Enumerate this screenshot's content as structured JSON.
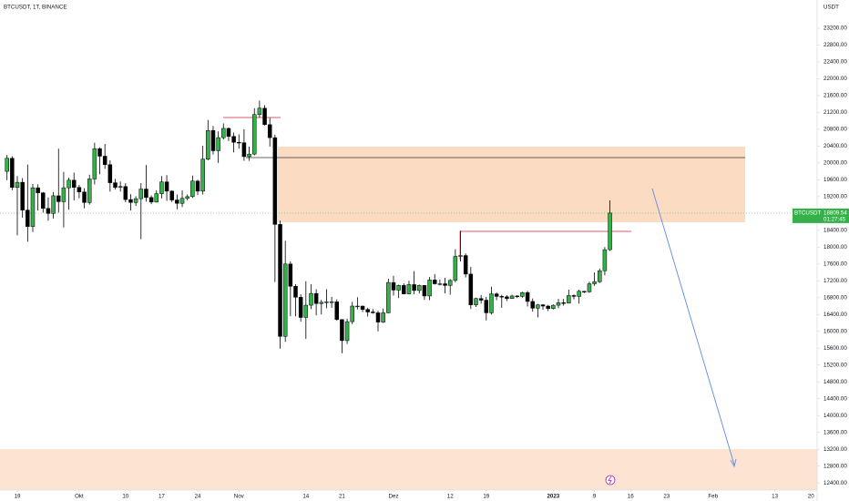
{
  "chart_data": {
    "type": "candlestick",
    "title": "BTCUSDT, 1T, BINANCE",
    "y_axis_label": "USDT",
    "symbol_label": "BTCUSDT",
    "countdown": "01:27:45",
    "up_color": "#36b04a",
    "down_color": "#000000",
    "grid": false,
    "xlim": [
      -3.36,
      155.2
    ],
    "ylim": [
      12230,
      23870
    ],
    "xticks": [
      {
        "value": 0,
        "label": "19"
      },
      {
        "value": 12,
        "label": "Okt"
      },
      {
        "value": 21,
        "label": "10"
      },
      {
        "value": 28,
        "label": "17"
      },
      {
        "value": 35,
        "label": "24"
      },
      {
        "value": 43,
        "label": "Nov"
      },
      {
        "value": 56,
        "label": "14"
      },
      {
        "value": 63,
        "label": "21"
      },
      {
        "value": 73,
        "label": "Dez"
      },
      {
        "value": 84,
        "label": "12"
      },
      {
        "value": 91,
        "label": "19"
      },
      {
        "value": 104,
        "label": "2023"
      },
      {
        "value": 112,
        "label": "9"
      },
      {
        "value": 119,
        "label": "16"
      },
      {
        "value": 126,
        "label": "23"
      },
      {
        "value": 135,
        "label": "Feb"
      },
      {
        "value": 147,
        "label": "13"
      },
      {
        "value": 154,
        "label": "20"
      }
    ],
    "yticks": [
      {
        "value": 12400,
        "label": "12400.00"
      },
      {
        "value": 12800,
        "label": "12800.00"
      },
      {
        "value": 13200,
        "label": "13200.00"
      },
      {
        "value": 13600,
        "label": "13600.00"
      },
      {
        "value": 14000,
        "label": "14000.00"
      },
      {
        "value": 14400,
        "label": "14400.00"
      },
      {
        "value": 14800,
        "label": "14800.00"
      },
      {
        "value": 15200,
        "label": "15200.00"
      },
      {
        "value": 15600,
        "label": "15600.00"
      },
      {
        "value": 16000,
        "label": "16000.00"
      },
      {
        "value": 16400,
        "label": "16400.00"
      },
      {
        "value": 16800,
        "label": "16800.00"
      },
      {
        "value": 17200,
        "label": "17200.00"
      },
      {
        "value": 17600,
        "label": "17600.00"
      },
      {
        "value": 18000,
        "label": "18000.00"
      },
      {
        "value": 18400,
        "label": "18400.00"
      },
      {
        "value": 18800,
        "label": "18800.00"
      },
      {
        "value": 19200,
        "label": "19200.00"
      },
      {
        "value": 19600,
        "label": "19600.00"
      },
      {
        "value": 20000,
        "label": "20000.00"
      },
      {
        "value": 20400,
        "label": "20400.00"
      },
      {
        "value": 20800,
        "label": "20800.00"
      },
      {
        "value": 21200,
        "label": "21200.00"
      },
      {
        "value": 21600,
        "label": "21600.00"
      },
      {
        "value": 22000,
        "label": "22000.00"
      },
      {
        "value": 22400,
        "label": "22400.00"
      },
      {
        "value": 22800,
        "label": "22800.00"
      },
      {
        "value": 23200,
        "label": "23200.00"
      }
    ],
    "x": [
      -2,
      -1,
      0,
      1,
      2,
      3,
      4,
      5,
      6,
      7,
      8,
      9,
      10,
      11,
      12,
      13,
      14,
      15,
      16,
      17,
      18,
      19,
      20,
      21,
      22,
      23,
      24,
      25,
      26,
      27,
      28,
      29,
      30,
      31,
      32,
      33,
      34,
      35,
      36,
      37,
      38,
      39,
      40,
      41,
      42,
      43,
      44,
      45,
      46,
      47,
      48,
      49,
      50,
      51,
      52,
      53,
      54,
      55,
      56,
      57,
      58,
      59,
      60,
      61,
      62,
      63,
      64,
      65,
      66,
      67,
      68,
      69,
      70,
      71,
      72,
      73,
      74,
      75,
      76,
      77,
      78,
      79,
      80,
      81,
      82,
      83,
      84,
      85,
      86,
      87,
      88,
      89,
      90,
      91,
      92,
      93,
      94,
      95,
      96,
      97,
      98,
      99,
      100,
      101,
      102,
      103,
      104,
      105,
      106,
      107,
      108,
      109,
      110,
      111,
      112,
      113,
      114,
      115
    ],
    "open": [
      19800,
      20110,
      19420,
      19540,
      18880,
      18490,
      19410,
      19290,
      18920,
      18800,
      19220,
      19080,
      19410,
      19590,
      19420,
      19310,
      19060,
      19620,
      20340,
      20160,
      19960,
      19530,
      19420,
      19440,
      19130,
      19060,
      19150,
      19380,
      19180,
      19070,
      19270,
      19550,
      19330,
      19120,
      19040,
      19160,
      19200,
      19570,
      19330,
      20090,
      20770,
      20290,
      20600,
      20820,
      20630,
      20490,
      20480,
      20150,
      20210,
      21150,
      21300,
      20910,
      20600,
      18540,
      15880,
      17600,
      17070,
      16810,
      16330,
      16620,
      16900,
      16660,
      16690,
      16700,
      16700,
      16280,
      15780,
      16230,
      16600,
      16600,
      16520,
      16460,
      16440,
      16220,
      16440,
      17160,
      16980,
      17090,
      16890,
      17110,
      16970,
      17090,
      16840,
      17220,
      17130,
      17130,
      17090,
      17210,
      17780,
      17800,
      17360,
      16630,
      16780,
      16740,
      16440,
      16890,
      16830,
      16820,
      16780,
      16840,
      16830,
      16920,
      16710,
      16550,
      16630,
      16600,
      16540,
      16620,
      16680,
      16670,
      16850,
      16830,
      16950,
      16940,
      17130,
      17180,
      17440,
      17940
    ],
    "high": [
      20190,
      20160,
      19690,
      19640,
      19960,
      19500,
      19490,
      19310,
      19180,
      19310,
      20340,
      19790,
      19650,
      19770,
      19480,
      19400,
      19720,
      20480,
      20370,
      20450,
      20060,
      19620,
      19560,
      19520,
      19260,
      19210,
      19520,
      19950,
      19230,
      19350,
      19690,
      19710,
      19350,
      19250,
      19350,
      19250,
      19700,
      19600,
      20410,
      21020,
      20880,
      20750,
      20940,
      20840,
      20720,
      20680,
      20800,
      20390,
      21300,
      21480,
      21370,
      21070,
      20670,
      18630,
      18150,
      17660,
      17120,
      16880,
      17190,
      17120,
      17000,
      16750,
      17000,
      16820,
      16760,
      16290,
      16300,
      16700,
      16810,
      16610,
      16560,
      16530,
      16490,
      16540,
      17250,
      17320,
      17110,
      17140,
      17200,
      17430,
      17110,
      17100,
      17290,
      17360,
      17230,
      17270,
      17240,
      17950,
      18390,
      17850,
      17530,
      16800,
      16860,
      16820,
      17060,
      16920,
      16870,
      16860,
      16870,
      16860,
      16940,
      16960,
      16780,
      16650,
      16650,
      16630,
      16640,
      16770,
      16770,
      16990,
      16880,
      16990,
      16960,
      17180,
      17400,
      17490,
      18000,
      19110
    ],
    "low": [
      19590,
      19350,
      18280,
      18700,
      18130,
      18360,
      18870,
      18820,
      18630,
      18680,
      18820,
      18470,
      18890,
      19110,
      19160,
      18920,
      19010,
      19490,
      19730,
      19860,
      19320,
      19370,
      19320,
      19070,
      18870,
      18980,
      18190,
      19080,
      19020,
      19060,
      19160,
      19100,
      19070,
      18900,
      18950,
      19110,
      19170,
      19240,
      19250,
      20060,
      20200,
      20000,
      20560,
      20520,
      20250,
      20340,
      20050,
      20050,
      20180,
      21080,
      20890,
      20390,
      17170,
      15590,
      15750,
      16360,
      16360,
      16230,
      15820,
      16530,
      16380,
      16400,
      16550,
      16560,
      16250,
      15480,
      15700,
      16170,
      16520,
      16460,
      16350,
      16420,
      16000,
      16200,
      16430,
      16850,
      16790,
      16880,
      16880,
      16880,
      16900,
      16750,
      16740,
      17110,
      17090,
      16900,
      16870,
      17160,
      17660,
      17280,
      16530,
      16580,
      16660,
      16260,
      16400,
      16740,
      16560,
      16720,
      16770,
      16790,
      16800,
      16590,
      16470,
      16330,
      16510,
      16480,
      16520,
      16550,
      16610,
      16660,
      16760,
      16660,
      16910,
      16920,
      17080,
      17150,
      17330,
      17910
    ],
    "close": [
      20110,
      19420,
      19540,
      18880,
      18490,
      19410,
      19290,
      18920,
      18800,
      19220,
      19080,
      19410,
      19590,
      19420,
      19310,
      19060,
      19620,
      20340,
      20160,
      19960,
      19530,
      19420,
      19440,
      19130,
      19060,
      19150,
      19380,
      19180,
      19070,
      19270,
      19550,
      19330,
      19120,
      19040,
      19160,
      19200,
      19570,
      19330,
      20090,
      20770,
      20290,
      20600,
      20820,
      20630,
      20490,
      20480,
      20150,
      20210,
      21150,
      21300,
      20910,
      20600,
      18540,
      15880,
      17600,
      17070,
      16810,
      16330,
      16620,
      16900,
      16660,
      16690,
      16700,
      16700,
      16280,
      15780,
      16230,
      16600,
      16600,
      16520,
      16460,
      16440,
      16220,
      16440,
      17160,
      16980,
      17090,
      16890,
      17110,
      16970,
      17090,
      16840,
      17220,
      17130,
      17130,
      17090,
      17210,
      17780,
      17800,
      17360,
      16630,
      16780,
      16740,
      16440,
      16890,
      16830,
      16820,
      16780,
      16840,
      16830,
      16920,
      16710,
      16550,
      16630,
      16600,
      16540,
      16620,
      16680,
      16670,
      16850,
      16830,
      16950,
      16940,
      17130,
      17180,
      17440,
      17940,
      18809.54
    ]
  }
}
